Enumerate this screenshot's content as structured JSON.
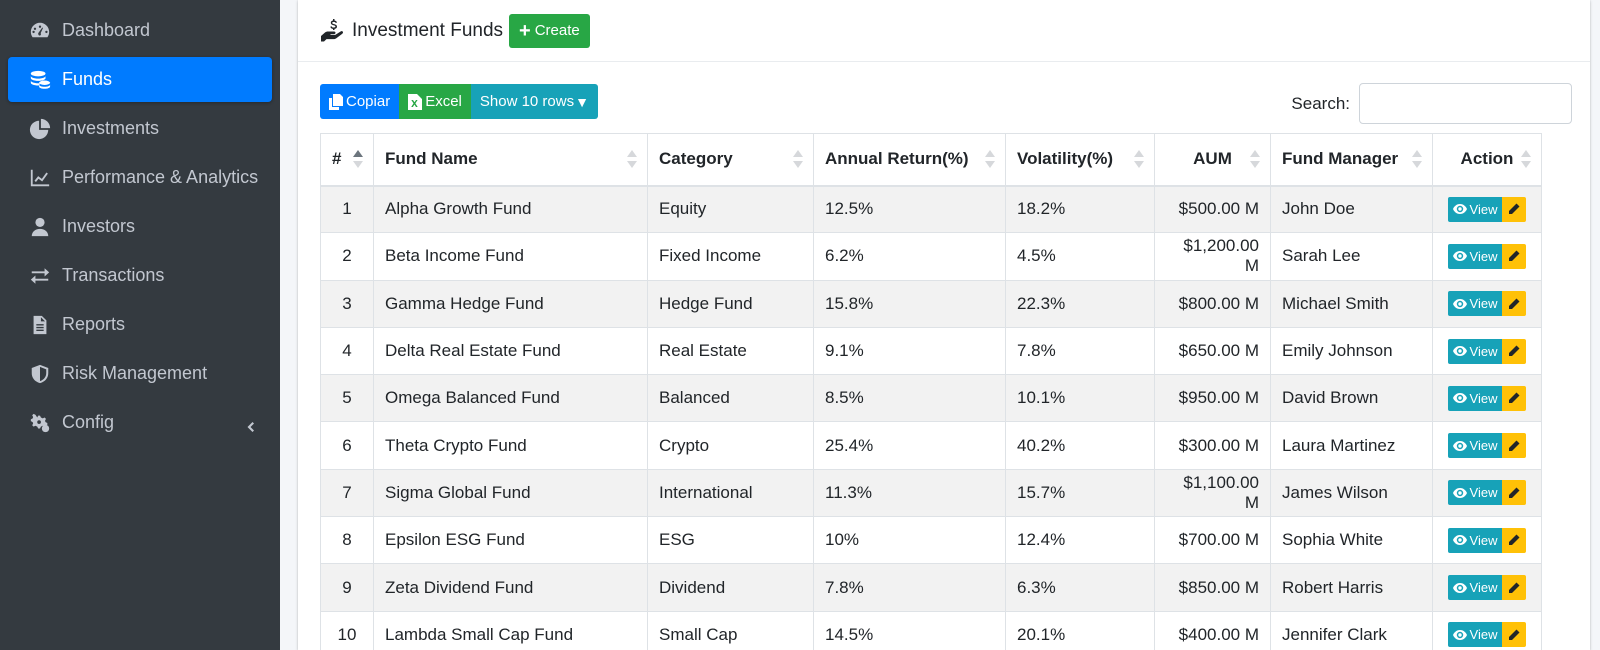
{
  "sidebar": {
    "items": [
      {
        "label": "Dashboard",
        "icon": "tachometer-icon"
      },
      {
        "label": "Funds",
        "icon": "coins-icon",
        "active": true
      },
      {
        "label": "Investments",
        "icon": "pie-chart-icon"
      },
      {
        "label": "Performance & Analytics",
        "icon": "line-chart-icon"
      },
      {
        "label": "Investors",
        "icon": "user-tie-icon"
      },
      {
        "label": "Transactions",
        "icon": "exchange-icon"
      },
      {
        "label": "Reports",
        "icon": "file-alt-icon"
      },
      {
        "label": "Risk Management",
        "icon": "shield-icon"
      },
      {
        "label": "Config",
        "icon": "cogs-icon",
        "chevron": "chevron-left-icon"
      }
    ]
  },
  "header": {
    "title": "Investment Funds",
    "create_label": "Create"
  },
  "toolbar": {
    "copy_label": "Copiar",
    "excel_label": "Excel",
    "rows_label": "Show 10 rows"
  },
  "search": {
    "label": "Search:",
    "value": "",
    "placeholder": ""
  },
  "table": {
    "columns": [
      "#",
      "Fund Name",
      "Category",
      "Annual Return(%)",
      "Volatility(%)",
      "AUM",
      "Fund Manager",
      "Action"
    ],
    "view_label": "View",
    "rows": [
      {
        "id": "1",
        "name": "Alpha Growth Fund",
        "category": "Equity",
        "ret": "12.5%",
        "vol": "18.2%",
        "aum": "$500.00 M",
        "manager": "John Doe"
      },
      {
        "id": "2",
        "name": "Beta Income Fund",
        "category": "Fixed Income",
        "ret": "6.2%",
        "vol": "4.5%",
        "aum": "$1,200.00 M",
        "manager": "Sarah Lee"
      },
      {
        "id": "3",
        "name": "Gamma Hedge Fund",
        "category": "Hedge Fund",
        "ret": "15.8%",
        "vol": "22.3%",
        "aum": "$800.00 M",
        "manager": "Michael Smith"
      },
      {
        "id": "4",
        "name": "Delta Real Estate Fund",
        "category": "Real Estate",
        "ret": "9.1%",
        "vol": "7.8%",
        "aum": "$650.00 M",
        "manager": "Emily Johnson"
      },
      {
        "id": "5",
        "name": "Omega Balanced Fund",
        "category": "Balanced",
        "ret": "8.5%",
        "vol": "10.1%",
        "aum": "$950.00 M",
        "manager": "David Brown"
      },
      {
        "id": "6",
        "name": "Theta Crypto Fund",
        "category": "Crypto",
        "ret": "25.4%",
        "vol": "40.2%",
        "aum": "$300.00 M",
        "manager": "Laura Martinez"
      },
      {
        "id": "7",
        "name": "Sigma Global Fund",
        "category": "International",
        "ret": "11.3%",
        "vol": "15.7%",
        "aum": "$1,100.00 M",
        "manager": "James Wilson"
      },
      {
        "id": "8",
        "name": "Epsilon ESG Fund",
        "category": "ESG",
        "ret": "10%",
        "vol": "12.4%",
        "aum": "$700.00 M",
        "manager": "Sophia White"
      },
      {
        "id": "9",
        "name": "Zeta Dividend Fund",
        "category": "Dividend",
        "ret": "7.8%",
        "vol": "6.3%",
        "aum": "$850.00 M",
        "manager": "Robert Harris"
      },
      {
        "id": "10",
        "name": "Lambda Small Cap Fund",
        "category": "Small Cap",
        "ret": "14.5%",
        "vol": "20.1%",
        "aum": "$400.00 M",
        "manager": "Jennifer Clark"
      }
    ]
  },
  "colors": {
    "sidebar_bg": "#343a40",
    "active": "#007bff",
    "create": "#28a745",
    "view": "#17a2b8",
    "edit": "#ffc107"
  }
}
